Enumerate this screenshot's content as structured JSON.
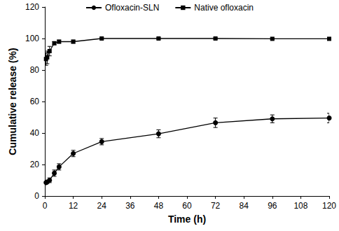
{
  "chart_data": {
    "type": "line",
    "x_label": "Time (h)",
    "y_label": "Cumulative release (%)",
    "xlim": [
      0,
      120
    ],
    "xticks": [
      0,
      12,
      24,
      36,
      48,
      60,
      72,
      84,
      96,
      108,
      120
    ],
    "ylim": [
      0,
      120
    ],
    "yticks": [
      0,
      20,
      40,
      60,
      80,
      100,
      120
    ],
    "grid": false,
    "legend": "top",
    "series": [
      {
        "name": "Ofloxacin-SLN",
        "color": "#000000",
        "marker": "circle",
        "line_style": "solid",
        "x": [
          0.5,
          1,
          2,
          4,
          6,
          12,
          24,
          48,
          72,
          96,
          120
        ],
        "values": [
          8.5,
          9,
          10,
          14.5,
          18.5,
          27,
          34.5,
          39.5,
          46.5,
          49,
          49.5
        ],
        "error": [
          1,
          1,
          1.5,
          2,
          2,
          2,
          2,
          2.5,
          3,
          2.5,
          3
        ]
      },
      {
        "name": "Native ofloxacin",
        "color": "#000000",
        "marker": "square",
        "line_style": "solid",
        "x": [
          0.5,
          1,
          2,
          4,
          6,
          12,
          24,
          48,
          72,
          96,
          120
        ],
        "values": [
          87,
          88,
          92,
          97,
          98,
          98,
          100,
          100,
          100,
          99.8,
          99.8
        ],
        "error": [
          4,
          4,
          3,
          1,
          1,
          1,
          0.5,
          0.5,
          0.5,
          0.5,
          0.5
        ]
      }
    ]
  }
}
